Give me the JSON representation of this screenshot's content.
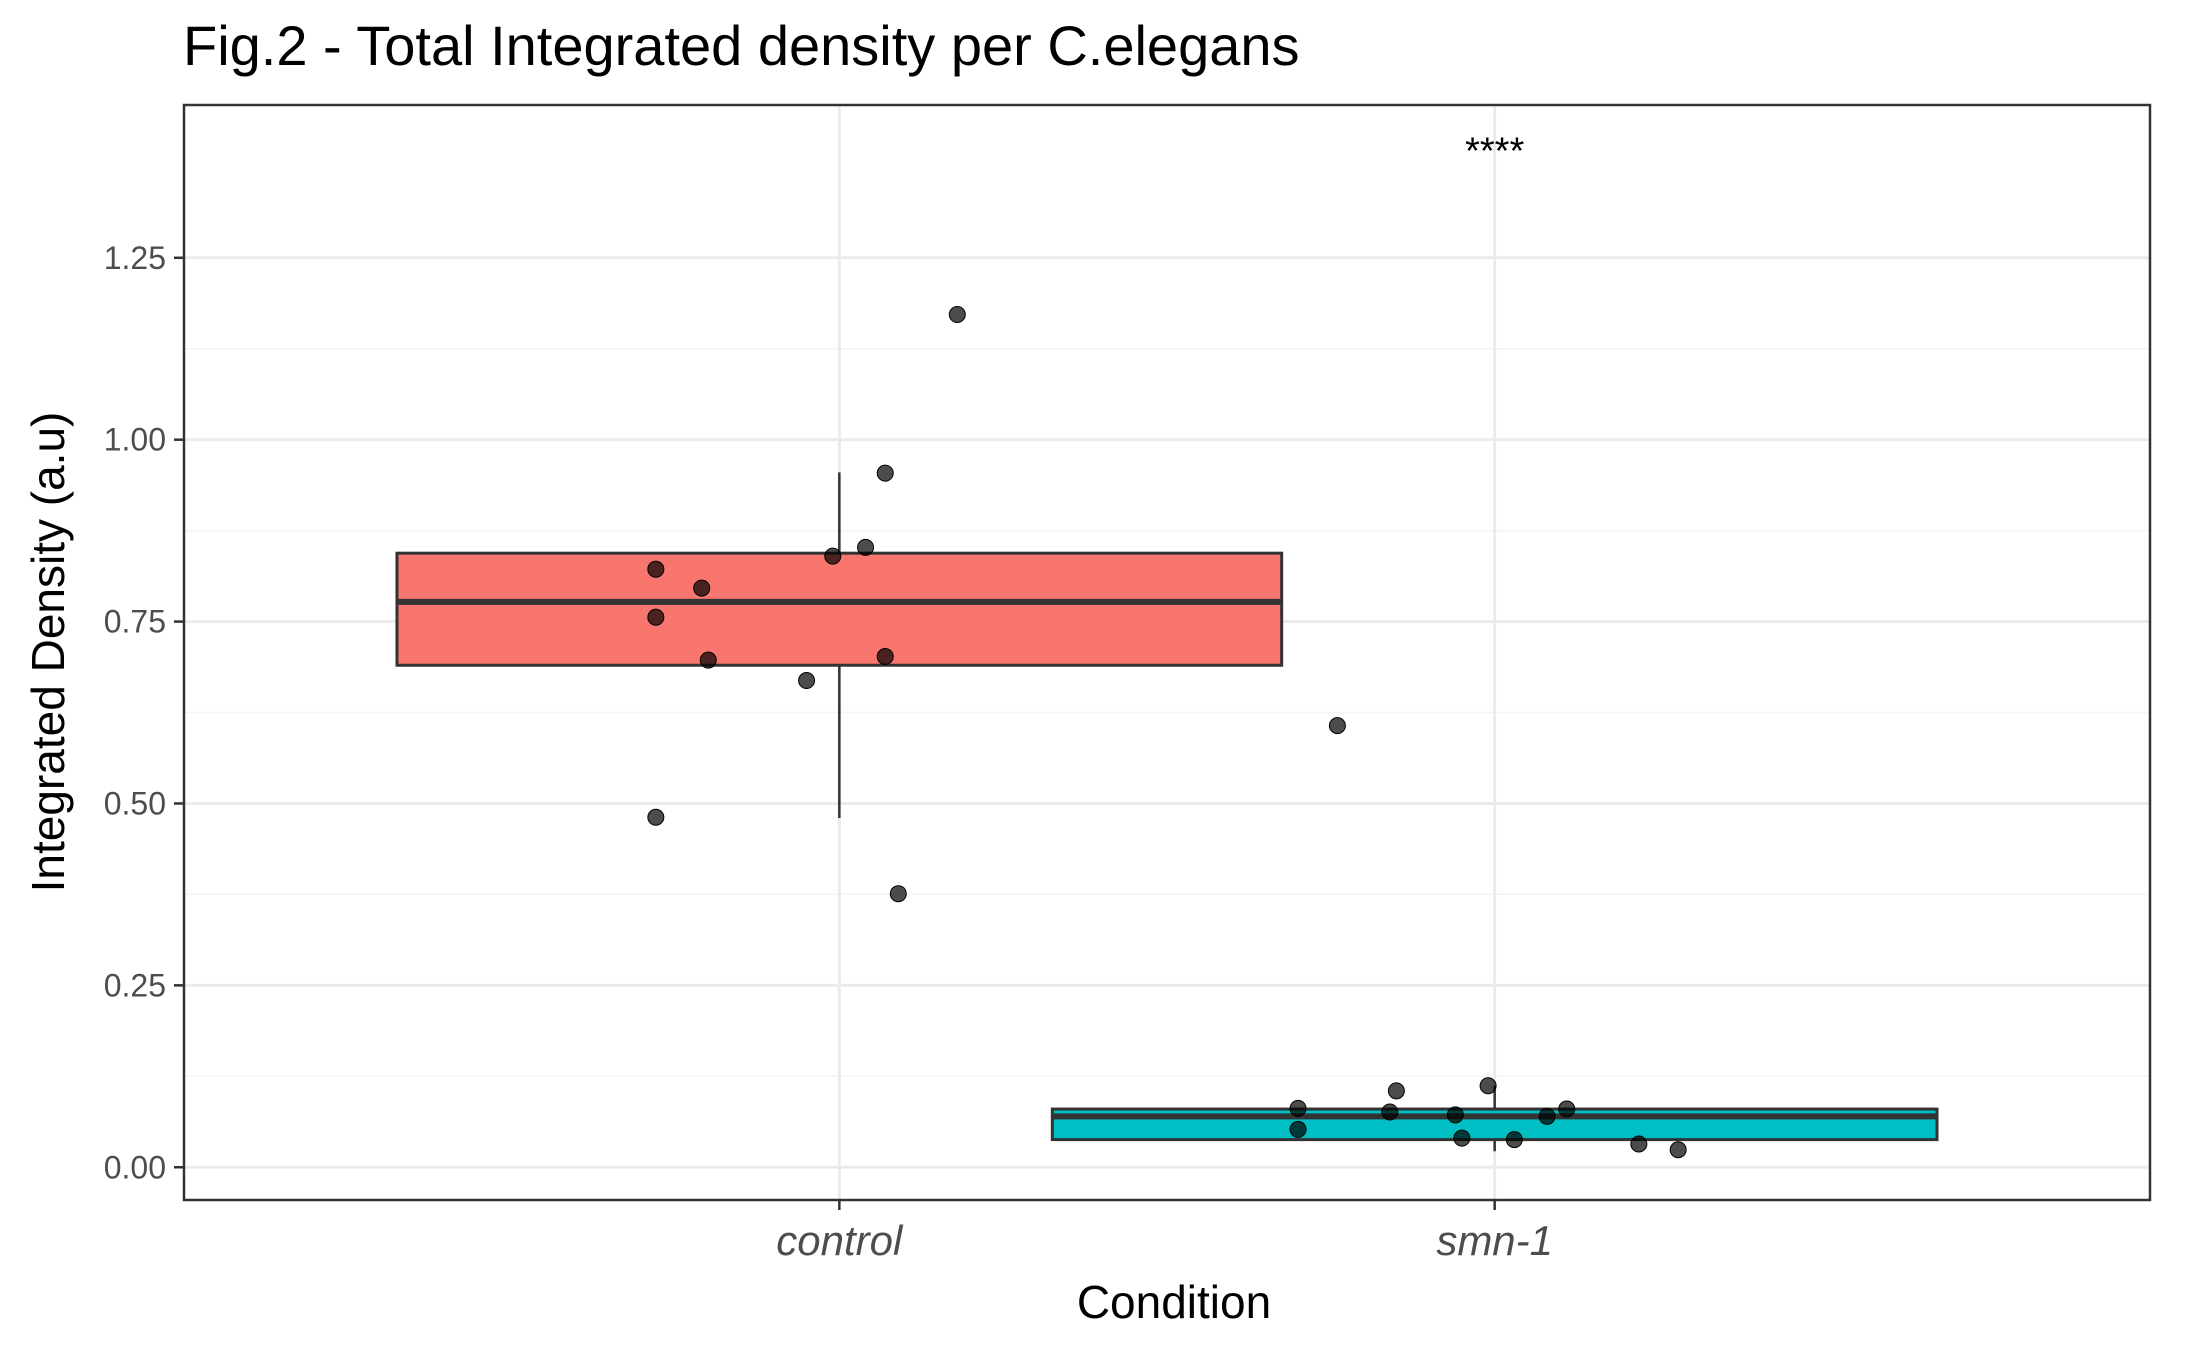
{
  "chart_data": {
    "type": "box",
    "title": "Fig.2 - Total Integrated density per C.elegans",
    "xlabel": "Condition",
    "ylabel": "Integrated Density (a.u)",
    "ylim": [
      -0.045,
      1.46
    ],
    "yticks": [
      0.0,
      0.25,
      0.5,
      0.75,
      1.0,
      1.25
    ],
    "ytick_labels": [
      "0.00",
      "0.25",
      "0.50",
      "0.75",
      "1.00",
      "1.25"
    ],
    "categories": [
      "control",
      "smn-1"
    ],
    "grid": true,
    "legend": "none",
    "groups": [
      {
        "name": "control",
        "color": "#F8766D",
        "box": {
          "whisker_low": 0.48,
          "q1": 0.69,
          "median": 0.777,
          "q3": 0.844,
          "whisker_high": 0.955
        },
        "points": [
          {
            "dx": 0.18,
            "y": 1.172
          },
          {
            "dx": 0.07,
            "y": 0.954
          },
          {
            "dx": 0.04,
            "y": 0.852
          },
          {
            "dx": -0.01,
            "y": 0.84
          },
          {
            "dx": -0.28,
            "y": 0.822
          },
          {
            "dx": -0.21,
            "y": 0.796
          },
          {
            "dx": -0.28,
            "y": 0.756
          },
          {
            "dx": 0.07,
            "y": 0.702
          },
          {
            "dx": -0.2,
            "y": 0.697
          },
          {
            "dx": -0.05,
            "y": 0.669
          },
          {
            "dx": -0.28,
            "y": 0.481
          },
          {
            "dx": 0.09,
            "y": 0.376
          }
        ]
      },
      {
        "name": "smn-1",
        "color": "#00BFC4",
        "box": {
          "whisker_low": 0.022,
          "q1": 0.038,
          "median": 0.07,
          "q3": 0.08,
          "whisker_high": 0.112
        },
        "points": [
          {
            "dx": -0.24,
            "y": 0.607
          },
          {
            "dx": -0.01,
            "y": 0.112
          },
          {
            "dx": -0.15,
            "y": 0.105
          },
          {
            "dx": -0.3,
            "y": 0.081
          },
          {
            "dx": 0.11,
            "y": 0.08
          },
          {
            "dx": -0.16,
            "y": 0.076
          },
          {
            "dx": -0.06,
            "y": 0.072
          },
          {
            "dx": 0.08,
            "y": 0.07
          },
          {
            "dx": -0.3,
            "y": 0.052
          },
          {
            "dx": -0.05,
            "y": 0.04
          },
          {
            "dx": 0.03,
            "y": 0.038
          },
          {
            "dx": 0.22,
            "y": 0.032
          },
          {
            "dx": 0.28,
            "y": 0.024
          }
        ]
      }
    ],
    "annotations": [
      {
        "category": "smn-1",
        "y": 1.41,
        "text": "****"
      }
    ]
  }
}
